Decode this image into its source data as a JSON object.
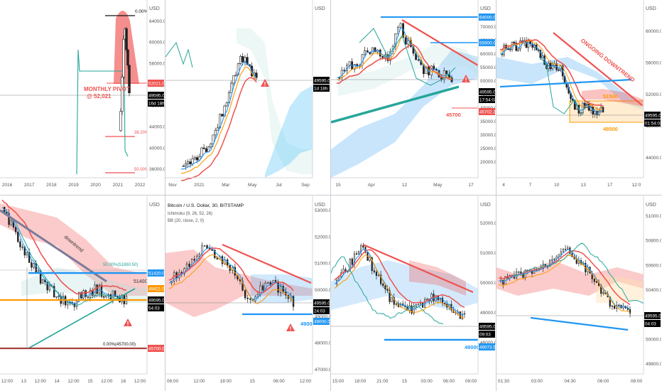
{
  "chart_data": [
    {
      "type": "candlestick",
      "panel": "monthly",
      "y_unit": "USD",
      "x_ticks": [
        "2016",
        "2017",
        "2018",
        "2019",
        "2020",
        "2021",
        "2022"
      ],
      "y_ticks": [
        "64000.00",
        "60000.00",
        "56000.00",
        "52000.00",
        "48000.00",
        "44000.00",
        "40000.00",
        "36000.00"
      ],
      "price_labels": [
        {
          "text": "52021.00",
          "color": "#ef5350"
        },
        {
          "text": "49595.00",
          "color": "#000000"
        },
        {
          "text": "16d 18h",
          "color": "#000000"
        }
      ],
      "annotations": [
        "0.00%(64",
        "MONTHLY PIVOT",
        "@ 52,021",
        "38.20%(4",
        "50.00%(4"
      ]
    },
    {
      "type": "candlestick",
      "panel": "weekly",
      "y_unit": "USD",
      "x_ticks": [
        "Nov",
        "2021",
        "Mar",
        "May",
        "Jul",
        "Sep"
      ],
      "y_ticks": [],
      "price_labels": [
        {
          "text": "49595.00",
          "color": "#000000"
        },
        {
          "text": "1d 18h",
          "color": "#000000"
        }
      ],
      "annotations": []
    },
    {
      "type": "candlestick",
      "panel": "daily",
      "y_unit": "USD",
      "x_ticks": [
        "15",
        "Apr",
        "12",
        "May",
        "17"
      ],
      "y_ticks": [
        "70000.00",
        "65000.00",
        "60000.00",
        "55000.00",
        "50000.00",
        "45000.00",
        "40000.00",
        "35000.00",
        "30000.00",
        "25000.00",
        "20000.00"
      ],
      "price_labels": [
        {
          "text": "64000.00",
          "color": "#2196f3"
        },
        {
          "text": "55900.00",
          "color": "#2196f3"
        },
        {
          "text": "49595.00",
          "color": "#000000"
        },
        {
          "text": "17:54:03",
          "color": "#000000"
        },
        {
          "text": "45702.22",
          "color": "#ef5350"
        }
      ],
      "annotations": [
        "45700"
      ]
    },
    {
      "type": "candlestick",
      "panel": "4h",
      "y_unit": "USD",
      "x_ticks": [
        "4",
        "7",
        "10",
        "13",
        "17",
        "12:0"
      ],
      "y_ticks": [
        "60000.00",
        "56000.00",
        "52000.00",
        "48000.00",
        "44000.00"
      ],
      "price_labels": [
        {
          "text": "49595.00",
          "color": "#000000"
        },
        {
          "text": "01:54:03",
          "color": "#000000"
        }
      ],
      "annotations": [
        "ONGOING DOWNTREND",
        "51500",
        "48500"
      ]
    },
    {
      "type": "candlestick",
      "panel": "1h",
      "y_unit": "USD",
      "x_ticks": [
        "12:00",
        "13",
        "12:00",
        "14",
        "12:00",
        "15",
        "12:00",
        "16",
        "12:00"
      ],
      "y_ticks": [],
      "price_labels": [
        {
          "text": "51420.00",
          "color": "#2196f3"
        },
        {
          "text": "49421.00",
          "color": "#ff9800"
        },
        {
          "text": "49595.00",
          "color": "#000000"
        },
        {
          "text": "54:03",
          "color": "#000000"
        },
        {
          "text": "45700.00",
          "color": "#ef5350"
        }
      ],
      "annotations": [
        "downtrend",
        "50.00%(51860.50)",
        "51400",
        "0.00%(45700.00)"
      ]
    },
    {
      "type": "candlestick",
      "panel": "30m",
      "title": "Bitcoin / U.S. Dollar, 30, BITSTAMP",
      "indicators": [
        "Ichimoku (9, 26, 52, 26)",
        "BB (20, close, 2, 0)"
      ],
      "y_unit": "USD",
      "x_ticks": [
        "06:00",
        "12:00",
        "18:00",
        "15",
        "06:00",
        "12:00"
      ],
      "y_ticks": [
        "53000.00",
        "52000.00",
        "51000.00",
        "50000.00",
        "49000.00",
        "48000.00",
        "47000.00"
      ],
      "price_labels": [
        {
          "text": "49595.00",
          "color": "#000000"
        },
        {
          "text": "24:03",
          "color": "#000000"
        },
        {
          "text": "49000.00",
          "color": "#2196f3"
        }
      ],
      "annotations": [
        "49000"
      ]
    },
    {
      "type": "candlestick",
      "panel": "15m",
      "y_unit": "USD",
      "x_ticks": [
        "15:00",
        "18:00",
        "21:00",
        "15",
        "03:00",
        "06:00",
        "09:00"
      ],
      "y_ticks": [
        "52000.00",
        "51000.00",
        "50000.00",
        "49000.00",
        "48000.00"
      ],
      "price_labels": [
        {
          "text": "49595.00",
          "color": "#000000"
        },
        {
          "text": "09:03",
          "color": "#000000"
        },
        {
          "text": "49073.51",
          "color": "#2196f3"
        }
      ],
      "annotations": [
        "49000"
      ]
    },
    {
      "type": "candlestick",
      "panel": "5m",
      "y_unit": "USD",
      "x_ticks": [
        "01:30",
        "03:00",
        "04:30",
        "06:00",
        "08:00"
      ],
      "y_ticks": [
        "51000.00",
        "50800.00",
        "50600.00",
        "50400.00",
        "50200.00",
        "50000.00",
        "49800.00"
      ],
      "price_labels": [
        {
          "text": "49595.00",
          "color": "#000000"
        },
        {
          "text": "04:03",
          "color": "#000000"
        }
      ],
      "annotations": []
    }
  ]
}
